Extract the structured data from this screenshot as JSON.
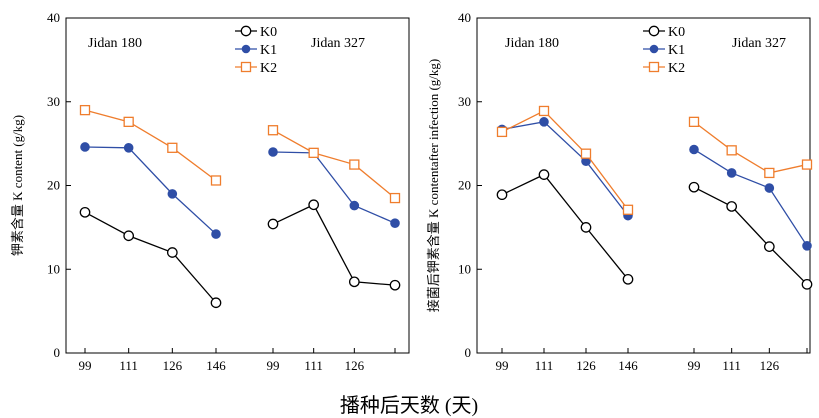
{
  "figure": {
    "shared_xlabel": "播种后天数 (天)"
  },
  "legend": {
    "entries": [
      {
        "label": "K0",
        "color": "#000000",
        "marker": "open-circle"
      },
      {
        "label": "K1",
        "color": "#2f4ea6",
        "marker": "filled-circle"
      },
      {
        "label": "K2",
        "color": "#ef7d2d",
        "marker": "open-square"
      }
    ]
  },
  "chart_data": [
    {
      "type": "line",
      "ylabel": "钾素含量 K content (g/kg)",
      "ylim": [
        0,
        40
      ],
      "yticks": [
        0,
        10,
        20,
        30,
        40
      ],
      "groups": [
        {
          "label": "Jidan 180",
          "x": [
            99,
            111,
            126,
            146
          ],
          "xticks": [
            "99",
            "111",
            "126",
            "146"
          ],
          "series": [
            {
              "name": "K0",
              "values": [
                16.8,
                14.0,
                12.0,
                6.0
              ]
            },
            {
              "name": "K1",
              "values": [
                24.6,
                24.5,
                19.0,
                14.2
              ]
            },
            {
              "name": "K2",
              "values": [
                29.0,
                27.6,
                24.5,
                20.6
              ]
            }
          ]
        },
        {
          "label": "Jidan 327",
          "x": [
            99,
            111,
            126,
            146
          ],
          "xticks": [
            "99",
            "111",
            "126"
          ],
          "series": [
            {
              "name": "K0",
              "values": [
                15.4,
                17.7,
                8.5,
                8.1
              ]
            },
            {
              "name": "K1",
              "values": [
                24.0,
                23.9,
                17.6,
                15.5
              ]
            },
            {
              "name": "K2",
              "values": [
                26.6,
                23.9,
                22.5,
                18.5
              ]
            }
          ]
        }
      ]
    },
    {
      "type": "line",
      "ylabel": "接菌后钾素含量 K contentafter infection (g/kg)",
      "ylim": [
        0,
        40
      ],
      "yticks": [
        0,
        10,
        20,
        30,
        40
      ],
      "groups": [
        {
          "label": "Jidan 180",
          "x": [
            99,
            111,
            126,
            146
          ],
          "xticks": [
            "99",
            "111",
            "126",
            "146"
          ],
          "series": [
            {
              "name": "K0",
              "values": [
                18.9,
                21.3,
                15.0,
                8.8
              ]
            },
            {
              "name": "K1",
              "values": [
                26.7,
                27.6,
                22.9,
                16.4
              ]
            },
            {
              "name": "K2",
              "values": [
                26.4,
                28.9,
                23.8,
                17.1
              ]
            }
          ]
        },
        {
          "label": "Jidan 327",
          "x": [
            99,
            111,
            126,
            146
          ],
          "xticks": [
            "99",
            "111",
            "126"
          ],
          "series": [
            {
              "name": "K0",
              "values": [
                19.8,
                17.5,
                12.7,
                8.2
              ]
            },
            {
              "name": "K1",
              "values": [
                24.3,
                21.5,
                19.7,
                12.8
              ]
            },
            {
              "name": "K2",
              "values": [
                27.6,
                24.2,
                21.5,
                22.5
              ]
            }
          ]
        }
      ]
    }
  ]
}
